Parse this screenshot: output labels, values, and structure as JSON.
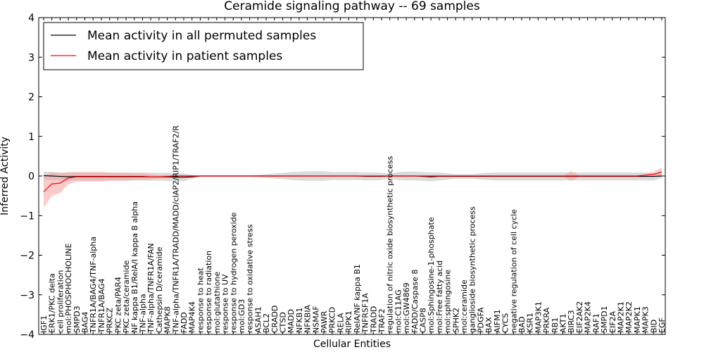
{
  "chart_data": {
    "type": "line",
    "title": "Ceramide signaling pathway -- 69 samples",
    "xlabel": "Cellular Entities",
    "ylabel": "Inferred Activity",
    "ylim": [
      -4,
      4
    ],
    "yticks": [
      -4,
      -3,
      -2,
      -1,
      0,
      1,
      2,
      3,
      4
    ],
    "grid": false,
    "legend_position": "top-left",
    "categories": [
      "IGF1",
      "ERK1/PKC delta",
      "cell proliferation",
      "mol:PHOSPHOCHOLINE",
      "SMPD3",
      "BAG4",
      "TNFR1A/BAG4/TNF-alpha",
      "TNFR1A/BAG4",
      "PRKCZ",
      "PKC zeta/PAR4",
      "PKC zeta/ceramide",
      "NF kappa B1/RelA/I kappa B alpha",
      "TNF-alpha",
      "TNF-alpha/TNFR1A/FAN",
      "Cathepsin D/ceramide",
      "MAPK8",
      "TNF-alpha/TNFR1A/TRADD/MADD/cIAP2/RIP1/TRAF2/R",
      "FADD",
      "MAP4K4",
      "response to heat",
      "response to radiation",
      "mol:glutathione",
      "response to UV",
      "response to hydrogen peroxide",
      "mol:GD3",
      "response to oxidative stress",
      "ASAH1",
      "BCL2",
      "CRADD",
      "CTSD",
      "MADD",
      "NFKB1",
      "NFKBIA",
      "NSMAF",
      "PAWR",
      "PRKCD",
      "RELA",
      "RIPK1",
      "RelA/NF kappa B1",
      "TNFRSF1A",
      "TRADD",
      "TRAF2",
      "regulation of nitric oxide biosynthetic process",
      "mol:C11AG",
      "mol:GW4869",
      "FADD/Caspase 8",
      "CASP8",
      "mol:Sphingosine-1-phosphate",
      "mol:Free fatty acid",
      "mol:sphingosine",
      "SPHK2",
      "mol:ceramide",
      "ganglioside biosynthetic process",
      "PDGFA",
      "BAX",
      "AIFM1",
      "CYCS",
      "negative regulation of cell cycle",
      "BAD",
      "KSR1",
      "MAP3K1",
      "PRKRA",
      "RB1",
      "AKT1",
      "BIRC3",
      "EIF2AK2",
      "MAP2K4",
      "RAF1",
      "SMPD1",
      "EIF2A",
      "MAP2K1",
      "MAP2K2",
      "MAPK1",
      "MAPK3",
      "BID",
      "EGF"
    ],
    "series": [
      {
        "name": "Mean activity in all permuted samples",
        "color": "#000000",
        "band_color": "#b0b0b0",
        "values": [
          0.01,
          0.0,
          -0.01,
          -0.02,
          -0.01,
          -0.01,
          -0.01,
          -0.01,
          -0.01,
          -0.01,
          -0.01,
          -0.01,
          -0.01,
          -0.02,
          -0.02,
          -0.02,
          -0.03,
          -0.03,
          -0.02,
          0.0,
          0,
          0,
          0,
          0,
          0,
          0,
          0,
          0,
          0,
          0,
          0,
          0,
          0,
          0,
          0,
          0,
          0,
          0,
          0,
          -0.01,
          -0.01,
          -0.01,
          0,
          0,
          0,
          0,
          -0.01,
          -0.02,
          -0.01,
          -0.01,
          -0.01,
          -0.01,
          -0.01,
          -0.01,
          -0.01,
          -0.01,
          -0.01,
          -0.01,
          -0.01,
          -0.01,
          -0.01,
          -0.01,
          -0.01,
          -0.01,
          -0.01,
          -0.01,
          -0.01,
          -0.01,
          -0.01,
          -0.01,
          -0.01,
          -0.01,
          -0.01,
          -0.01,
          -0.01,
          0.0
        ],
        "spread": [
          0.1,
          0.1,
          0.1,
          0.1,
          0.1,
          0.1,
          0.1,
          0.1,
          0.1,
          0.1,
          0.1,
          0.1,
          0.1,
          0.1,
          0.1,
          0.1,
          0.1,
          0.1,
          0.05,
          0.02,
          0.02,
          0.02,
          0.02,
          0.02,
          0.02,
          0.02,
          0.03,
          0.05,
          0.06,
          0.08,
          0.1,
          0.11,
          0.12,
          0.12,
          0.12,
          0.1,
          0.1,
          0.1,
          0.1,
          0.1,
          0.1,
          0.09,
          0.06,
          0.1,
          0.11,
          0.11,
          0.11,
          0.11,
          0.1,
          0.08,
          0.06,
          0.06,
          0.06,
          0.08,
          0.09,
          0.1,
          0.1,
          0.1,
          0.1,
          0.1,
          0.1,
          0.1,
          0.1,
          0.1,
          0.1,
          0.1,
          0.1,
          0.1,
          0.1,
          0.1,
          0.1,
          0.1,
          0.1,
          0.1,
          0.1,
          0.05
        ]
      },
      {
        "name": "Mean activity in patient samples",
        "color": "#ff0000",
        "band_color": "#f4a0a0",
        "values": [
          -0.4,
          -0.2,
          -0.18,
          -0.05,
          -0.02,
          -0.02,
          -0.02,
          -0.02,
          -0.02,
          -0.02,
          -0.02,
          -0.02,
          -0.02,
          -0.02,
          -0.02,
          -0.01,
          0,
          0,
          0,
          0,
          0,
          0,
          0,
          0,
          0,
          0,
          0,
          0,
          0,
          0,
          0,
          0,
          0,
          0,
          0,
          0,
          0,
          0,
          0,
          0,
          0,
          0,
          0,
          0,
          0,
          0,
          0,
          0,
          0,
          0,
          0,
          0,
          0,
          0,
          0,
          0,
          0,
          0,
          0,
          0,
          0,
          0,
          0,
          0,
          0,
          0,
          0,
          0,
          0,
          0,
          0,
          0,
          0,
          0.02,
          0.04,
          0.1
        ],
        "spread": [
          0.4,
          0.3,
          0.25,
          0.15,
          0.12,
          0.12,
          0.12,
          0.12,
          0.1,
          0.1,
          0.1,
          0.08,
          0.08,
          0.06,
          0.04,
          0.04,
          0.03,
          0.02,
          0.01,
          0.01,
          0.01,
          0.01,
          0.01,
          0.01,
          0.01,
          0.01,
          0.01,
          0.01,
          0.01,
          0.01,
          0.01,
          0.01,
          0.01,
          0.01,
          0.01,
          0.01,
          0.01,
          0.01,
          0.01,
          0.01,
          0.01,
          0.01,
          0.01,
          0.01,
          0.01,
          0.01,
          0.01,
          0.01,
          0.01,
          0.01,
          0.01,
          0.01,
          0.01,
          0.01,
          0.01,
          0.01,
          0.01,
          0.01,
          0.01,
          0.01,
          0.01,
          0.01,
          0.01,
          0.01,
          0.12,
          0.02,
          0.02,
          0.02,
          0.02,
          0.02,
          0.02,
          0.02,
          0.02,
          0.03,
          0.06,
          0.12
        ]
      }
    ]
  }
}
